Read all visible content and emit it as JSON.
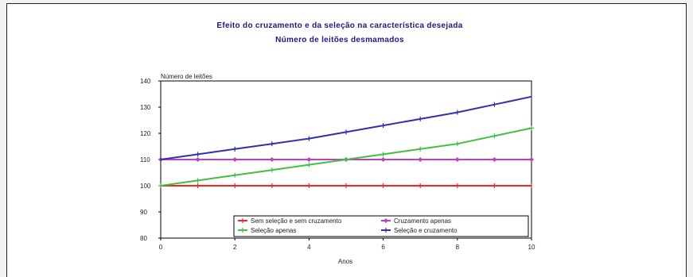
{
  "chart_data": {
    "type": "line",
    "title": "Efeito do cruzamento e da seleção na característica desejada",
    "subtitle": "Número de leitões desmamados",
    "ylabel": "Número de leitões",
    "xlabel": "Anos",
    "xlim": [
      0,
      10
    ],
    "ylim": [
      80,
      140
    ],
    "xticks": [
      0,
      2,
      4,
      6,
      8,
      10
    ],
    "yticks": [
      80,
      90,
      100,
      110,
      120,
      130,
      140
    ],
    "x": [
      0,
      1,
      2,
      3,
      4,
      5,
      6,
      7,
      8,
      9,
      10
    ],
    "legend_position": "bottom-right",
    "series": [
      {
        "name": "Sem seleção e sem cruzamento",
        "color": "#ff2020",
        "marker": "dash",
        "values": [
          100,
          100,
          100,
          100,
          100,
          100,
          100,
          100,
          100,
          100,
          100
        ]
      },
      {
        "name": "Cruzamento apenas",
        "color": "#c040c0",
        "marker": "diamond",
        "values": [
          110,
          110,
          110,
          110,
          110,
          110,
          110,
          110,
          110,
          110,
          110
        ]
      },
      {
        "name": "Seleção apenas",
        "color": "#40c040",
        "marker": "plus",
        "values": [
          100,
          102,
          104,
          106,
          108,
          110,
          112,
          114,
          116,
          119,
          122
        ]
      },
      {
        "name": "Seleção e cruzamento",
        "color": "#3030b0",
        "marker": "dash",
        "values": [
          110,
          112,
          114,
          116,
          118,
          120.5,
          123,
          125.5,
          128,
          131,
          134
        ]
      }
    ]
  }
}
